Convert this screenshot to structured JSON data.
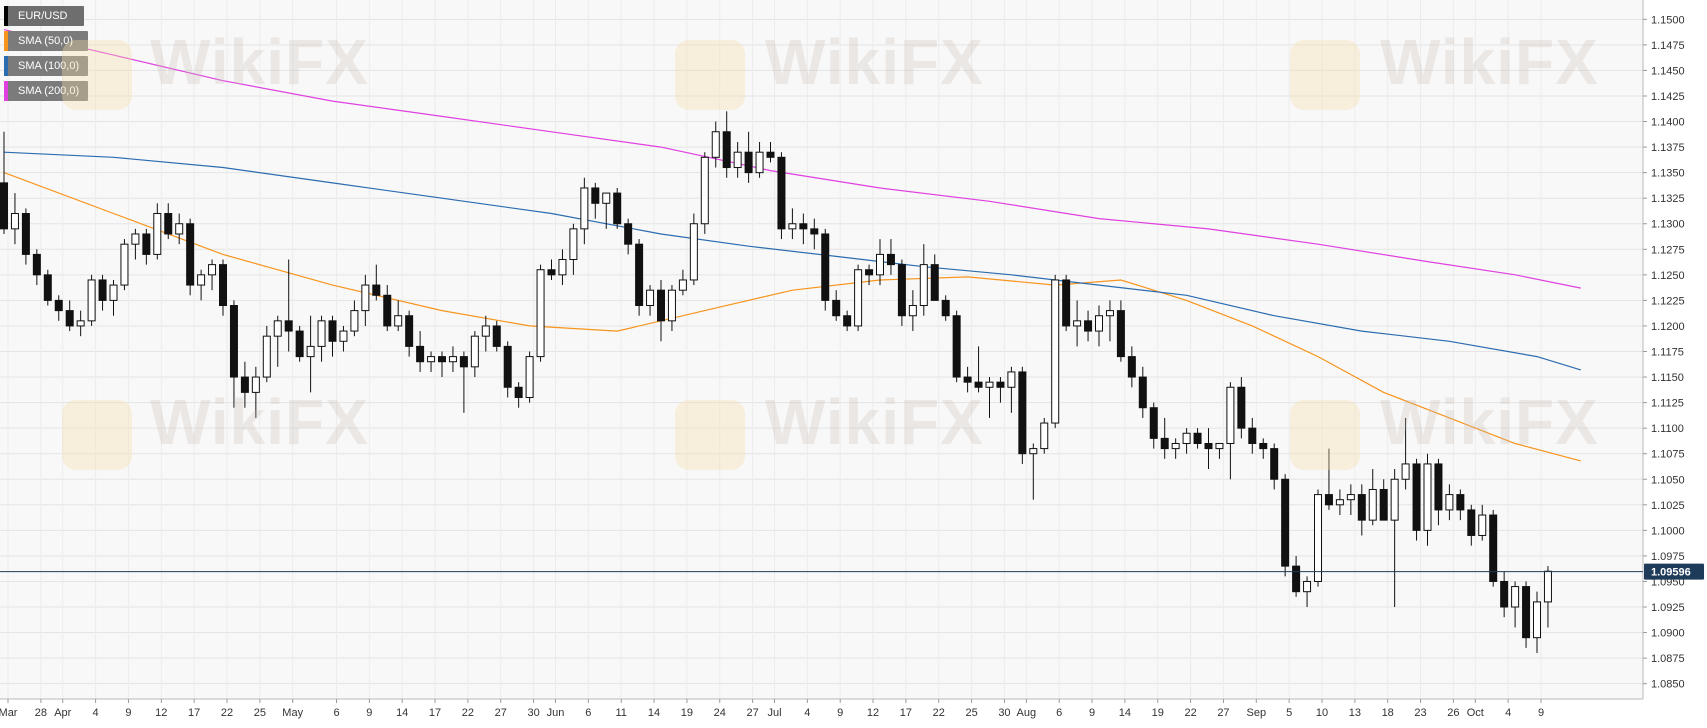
{
  "watermark_text": "WikiFX",
  "legend": [
    {
      "label": "EUR/USD",
      "color": "#000000"
    },
    {
      "label": "SMA (50,0)",
      "color": "#f7941d"
    },
    {
      "label": "SMA (100,0)",
      "color": "#2b6cb0"
    },
    {
      "label": "SMA (200,0)",
      "color": "#e040e0"
    }
  ],
  "current_price": {
    "label": "1.09596",
    "value": 1.09596,
    "color": "#1f3b5a"
  },
  "chart_data": {
    "type": "candlestick",
    "symbol": "EUR/USD",
    "ylim": [
      1.0835,
      1.1515
    ],
    "y_ticks": [
      "1.0850",
      "1.0875",
      "1.0900",
      "1.0925",
      "1.0950",
      "1.0975",
      "1.1000",
      "1.1025",
      "1.1050",
      "1.1075",
      "1.1100",
      "1.1125",
      "1.1150",
      "1.1175",
      "1.1200",
      "1.1225",
      "1.1250",
      "1.1275",
      "1.1300",
      "1.1325",
      "1.1350",
      "1.1375",
      "1.1400",
      "1.1425",
      "1.1450",
      "1.1475",
      "1.1500"
    ],
    "x_ticks": [
      "Mar",
      "28",
      "Apr",
      "4",
      "9",
      "12",
      "17",
      "22",
      "25",
      "May",
      "6",
      "9",
      "14",
      "17",
      "22",
      "27",
      "30",
      "Jun",
      "6",
      "11",
      "14",
      "19",
      "24",
      "27",
      "Jul",
      "4",
      "9",
      "12",
      "17",
      "22",
      "25",
      "30",
      "Aug",
      "6",
      "9",
      "14",
      "19",
      "22",
      "27",
      "Sep",
      "5",
      "10",
      "13",
      "18",
      "23",
      "26",
      "Oct",
      "4",
      "9"
    ],
    "series": [
      {
        "name": "EUR/USD",
        "ohlc": [
          [
            1.134,
            1.139,
            1.129,
            1.1295
          ],
          [
            1.1295,
            1.133,
            1.128,
            1.131
          ],
          [
            1.131,
            1.1315,
            1.126,
            1.127
          ],
          [
            1.127,
            1.1275,
            1.124,
            1.125
          ],
          [
            1.125,
            1.1255,
            1.122,
            1.1225
          ],
          [
            1.1225,
            1.123,
            1.1205,
            1.1215
          ],
          [
            1.1215,
            1.1225,
            1.1195,
            1.12
          ],
          [
            1.12,
            1.1215,
            1.119,
            1.1205
          ],
          [
            1.1205,
            1.125,
            1.12,
            1.1245
          ],
          [
            1.1245,
            1.125,
            1.1215,
            1.1225
          ],
          [
            1.1225,
            1.1245,
            1.121,
            1.124
          ],
          [
            1.124,
            1.1285,
            1.1235,
            1.128
          ],
          [
            1.128,
            1.1295,
            1.1265,
            1.129
          ],
          [
            1.129,
            1.1295,
            1.126,
            1.127
          ],
          [
            1.127,
            1.132,
            1.1265,
            1.131
          ],
          [
            1.131,
            1.132,
            1.1285,
            1.129
          ],
          [
            1.129,
            1.131,
            1.128,
            1.13
          ],
          [
            1.13,
            1.1305,
            1.123,
            1.124
          ],
          [
            1.124,
            1.1255,
            1.1225,
            1.125
          ],
          [
            1.125,
            1.1265,
            1.1235,
            1.126
          ],
          [
            1.126,
            1.1265,
            1.121,
            1.122
          ],
          [
            1.122,
            1.1225,
            1.112,
            1.115
          ],
          [
            1.115,
            1.1165,
            1.112,
            1.1135
          ],
          [
            1.1135,
            1.116,
            1.111,
            1.115
          ],
          [
            1.115,
            1.12,
            1.1145,
            1.119
          ],
          [
            1.119,
            1.121,
            1.116,
            1.1205
          ],
          [
            1.1205,
            1.1265,
            1.1175,
            1.1195
          ],
          [
            1.1195,
            1.12,
            1.1165,
            1.117
          ],
          [
            1.117,
            1.121,
            1.1135,
            1.118
          ],
          [
            1.118,
            1.121,
            1.1165,
            1.1205
          ],
          [
            1.1205,
            1.121,
            1.117,
            1.1185
          ],
          [
            1.1185,
            1.12,
            1.1175,
            1.1195
          ],
          [
            1.1195,
            1.1225,
            1.119,
            1.1215
          ],
          [
            1.1215,
            1.125,
            1.12,
            1.124
          ],
          [
            1.124,
            1.126,
            1.1225,
            1.123
          ],
          [
            1.123,
            1.124,
            1.1195,
            1.12
          ],
          [
            1.12,
            1.1225,
            1.1195,
            1.121
          ],
          [
            1.121,
            1.1215,
            1.117,
            1.118
          ],
          [
            1.118,
            1.1195,
            1.1155,
            1.1165
          ],
          [
            1.1165,
            1.1175,
            1.1155,
            1.117
          ],
          [
            1.117,
            1.1175,
            1.115,
            1.1165
          ],
          [
            1.1165,
            1.118,
            1.1155,
            1.117
          ],
          [
            1.117,
            1.1175,
            1.1115,
            1.116
          ],
          [
            1.116,
            1.1195,
            1.115,
            1.119
          ],
          [
            1.119,
            1.121,
            1.1175,
            1.12
          ],
          [
            1.12,
            1.1205,
            1.1175,
            1.118
          ],
          [
            1.118,
            1.1185,
            1.113,
            1.114
          ],
          [
            1.114,
            1.1145,
            1.112,
            1.113
          ],
          [
            1.113,
            1.1175,
            1.1125,
            1.117
          ],
          [
            1.117,
            1.126,
            1.1165,
            1.1255
          ],
          [
            1.1255,
            1.1265,
            1.1245,
            1.125
          ],
          [
            1.125,
            1.1275,
            1.124,
            1.1265
          ],
          [
            1.1265,
            1.13,
            1.125,
            1.1295
          ],
          [
            1.1295,
            1.1345,
            1.128,
            1.1335
          ],
          [
            1.1335,
            1.134,
            1.1305,
            1.132
          ],
          [
            1.132,
            1.133,
            1.1295,
            1.133
          ],
          [
            1.133,
            1.1335,
            1.1295,
            1.13
          ],
          [
            1.13,
            1.1305,
            1.127,
            1.128
          ],
          [
            1.128,
            1.1285,
            1.121,
            1.122
          ],
          [
            1.122,
            1.124,
            1.121,
            1.1235
          ],
          [
            1.1235,
            1.1245,
            1.1185,
            1.1205
          ],
          [
            1.1205,
            1.124,
            1.1195,
            1.1235
          ],
          [
            1.1235,
            1.1255,
            1.123,
            1.1245
          ],
          [
            1.1245,
            1.131,
            1.124,
            1.13
          ],
          [
            1.13,
            1.137,
            1.129,
            1.1365
          ],
          [
            1.1365,
            1.14,
            1.1355,
            1.139
          ],
          [
            1.139,
            1.141,
            1.1345,
            1.1355
          ],
          [
            1.1355,
            1.138,
            1.1345,
            1.137
          ],
          [
            1.137,
            1.139,
            1.134,
            1.135
          ],
          [
            1.135,
            1.138,
            1.1345,
            1.137
          ],
          [
            1.137,
            1.138,
            1.136,
            1.1365
          ],
          [
            1.1365,
            1.137,
            1.1285,
            1.1295
          ],
          [
            1.1295,
            1.1315,
            1.1285,
            1.13
          ],
          [
            1.13,
            1.131,
            1.128,
            1.1295
          ],
          [
            1.1295,
            1.1305,
            1.1275,
            1.129
          ],
          [
            1.129,
            1.1295,
            1.1215,
            1.1225
          ],
          [
            1.1225,
            1.1235,
            1.1205,
            1.121
          ],
          [
            1.121,
            1.1215,
            1.1195,
            1.12
          ],
          [
            1.12,
            1.126,
            1.1195,
            1.1255
          ],
          [
            1.1255,
            1.126,
            1.124,
            1.125
          ],
          [
            1.125,
            1.1285,
            1.124,
            1.127
          ],
          [
            1.127,
            1.1285,
            1.125,
            1.126
          ],
          [
            1.126,
            1.1265,
            1.12,
            1.121
          ],
          [
            1.121,
            1.1235,
            1.1195,
            1.122
          ],
          [
            1.122,
            1.128,
            1.121,
            1.126
          ],
          [
            1.126,
            1.127,
            1.1225,
            1.1225
          ],
          [
            1.1225,
            1.123,
            1.1205,
            1.121
          ],
          [
            1.121,
            1.1215,
            1.1145,
            1.115
          ],
          [
            1.115,
            1.116,
            1.1135,
            1.1145
          ],
          [
            1.1145,
            1.118,
            1.1135,
            1.114
          ],
          [
            1.114,
            1.115,
            1.111,
            1.1145
          ],
          [
            1.1145,
            1.115,
            1.1125,
            1.114
          ],
          [
            1.114,
            1.116,
            1.1115,
            1.1155
          ],
          [
            1.1155,
            1.116,
            1.1065,
            1.1075
          ],
          [
            1.1075,
            1.1085,
            1.103,
            1.108
          ],
          [
            1.108,
            1.111,
            1.1075,
            1.1105
          ],
          [
            1.1105,
            1.125,
            1.11,
            1.1245
          ],
          [
            1.1245,
            1.125,
            1.1195,
            1.12
          ],
          [
            1.12,
            1.1225,
            1.118,
            1.1205
          ],
          [
            1.1205,
            1.1215,
            1.1185,
            1.1195
          ],
          [
            1.1195,
            1.122,
            1.118,
            1.121
          ],
          [
            1.121,
            1.1225,
            1.1185,
            1.1215
          ],
          [
            1.1215,
            1.1225,
            1.1165,
            1.117
          ],
          [
            1.117,
            1.118,
            1.114,
            1.115
          ],
          [
            1.115,
            1.116,
            1.111,
            1.112
          ],
          [
            1.112,
            1.1125,
            1.108,
            1.109
          ],
          [
            1.109,
            1.111,
            1.107,
            1.108
          ],
          [
            1.108,
            1.109,
            1.107,
            1.1085
          ],
          [
            1.1085,
            1.11,
            1.1075,
            1.1095
          ],
          [
            1.1095,
            1.11,
            1.108,
            1.1085
          ],
          [
            1.1085,
            1.11,
            1.106,
            1.108
          ],
          [
            1.108,
            1.1085,
            1.107,
            1.1085
          ],
          [
            1.1085,
            1.1145,
            1.105,
            1.114
          ],
          [
            1.114,
            1.115,
            1.109,
            1.11
          ],
          [
            1.11,
            1.111,
            1.1075,
            1.1085
          ],
          [
            1.1085,
            1.109,
            1.107,
            1.108
          ],
          [
            1.108,
            1.1085,
            1.104,
            1.105
          ],
          [
            1.105,
            1.1055,
            1.0955,
            1.0965
          ],
          [
            1.0965,
            1.0975,
            1.0935,
            1.094
          ],
          [
            1.094,
            1.0955,
            1.0925,
            1.095
          ],
          [
            1.095,
            1.104,
            1.0945,
            1.1035
          ],
          [
            1.1035,
            1.108,
            1.102,
            1.1025
          ],
          [
            1.1025,
            1.104,
            1.1015,
            1.103
          ],
          [
            1.103,
            1.1045,
            1.1015,
            1.1035
          ],
          [
            1.1035,
            1.1045,
            1.0995,
            1.101
          ],
          [
            1.101,
            1.106,
            1.1005,
            1.104
          ],
          [
            1.104,
            1.105,
            1.101,
            1.101
          ],
          [
            1.101,
            1.106,
            1.0925,
            1.105
          ],
          [
            1.105,
            1.111,
            1.104,
            1.1065
          ],
          [
            1.1065,
            1.107,
            1.099,
            1.1
          ],
          [
            1.1,
            1.1075,
            1.0985,
            1.1065
          ],
          [
            1.1065,
            1.107,
            1.1005,
            1.102
          ],
          [
            1.102,
            1.1045,
            1.101,
            1.1035
          ],
          [
            1.1035,
            1.104,
            1.101,
            1.102
          ],
          [
            1.102,
            1.1025,
            1.0985,
            1.0995
          ],
          [
            1.0995,
            1.1025,
            1.099,
            1.1015
          ],
          [
            1.1015,
            1.102,
            1.0945,
            1.095
          ],
          [
            1.095,
            1.096,
            1.0915,
            1.0925
          ],
          [
            1.0925,
            1.095,
            1.0905,
            1.0945
          ],
          [
            1.0945,
            1.095,
            1.0885,
            1.0895
          ],
          [
            1.0895,
            1.094,
            1.088,
            1.093
          ],
          [
            1.093,
            1.0965,
            1.0905,
            1.096
          ]
        ]
      },
      {
        "name": "SMA (50,0)",
        "points": [
          [
            0,
            1.135
          ],
          [
            10,
            1.131
          ],
          [
            20,
            1.127
          ],
          [
            30,
            1.124
          ],
          [
            40,
            1.1215
          ],
          [
            48,
            1.12
          ],
          [
            56,
            1.1195
          ],
          [
            64,
            1.1215
          ],
          [
            72,
            1.1235
          ],
          [
            80,
            1.1245
          ],
          [
            88,
            1.1248
          ],
          [
            96,
            1.124
          ],
          [
            102,
            1.1245
          ],
          [
            108,
            1.1225
          ],
          [
            114,
            1.12
          ],
          [
            120,
            1.117
          ],
          [
            126,
            1.1135
          ],
          [
            132,
            1.111
          ],
          [
            138,
            1.1085
          ],
          [
            144,
            1.1068
          ]
        ]
      },
      {
        "name": "SMA (100,0)",
        "points": [
          [
            0,
            1.137
          ],
          [
            10,
            1.1365
          ],
          [
            20,
            1.1355
          ],
          [
            30,
            1.134
          ],
          [
            40,
            1.1325
          ],
          [
            50,
            1.131
          ],
          [
            60,
            1.129
          ],
          [
            68,
            1.1278
          ],
          [
            76,
            1.1268
          ],
          [
            84,
            1.1258
          ],
          [
            92,
            1.125
          ],
          [
            100,
            1.124
          ],
          [
            108,
            1.123
          ],
          [
            116,
            1.121
          ],
          [
            124,
            1.1195
          ],
          [
            132,
            1.1185
          ],
          [
            140,
            1.117
          ],
          [
            144,
            1.1157
          ]
        ]
      },
      {
        "name": "SMA (200,0)",
        "points": [
          [
            0,
            1.149
          ],
          [
            10,
            1.1465
          ],
          [
            20,
            1.144
          ],
          [
            30,
            1.142
          ],
          [
            40,
            1.1405
          ],
          [
            50,
            1.139
          ],
          [
            60,
            1.1375
          ],
          [
            70,
            1.1352
          ],
          [
            80,
            1.1335
          ],
          [
            90,
            1.1322
          ],
          [
            100,
            1.1305
          ],
          [
            110,
            1.1295
          ],
          [
            120,
            1.128
          ],
          [
            130,
            1.1263
          ],
          [
            138,
            1.125
          ],
          [
            144,
            1.1237
          ]
        ]
      }
    ]
  }
}
